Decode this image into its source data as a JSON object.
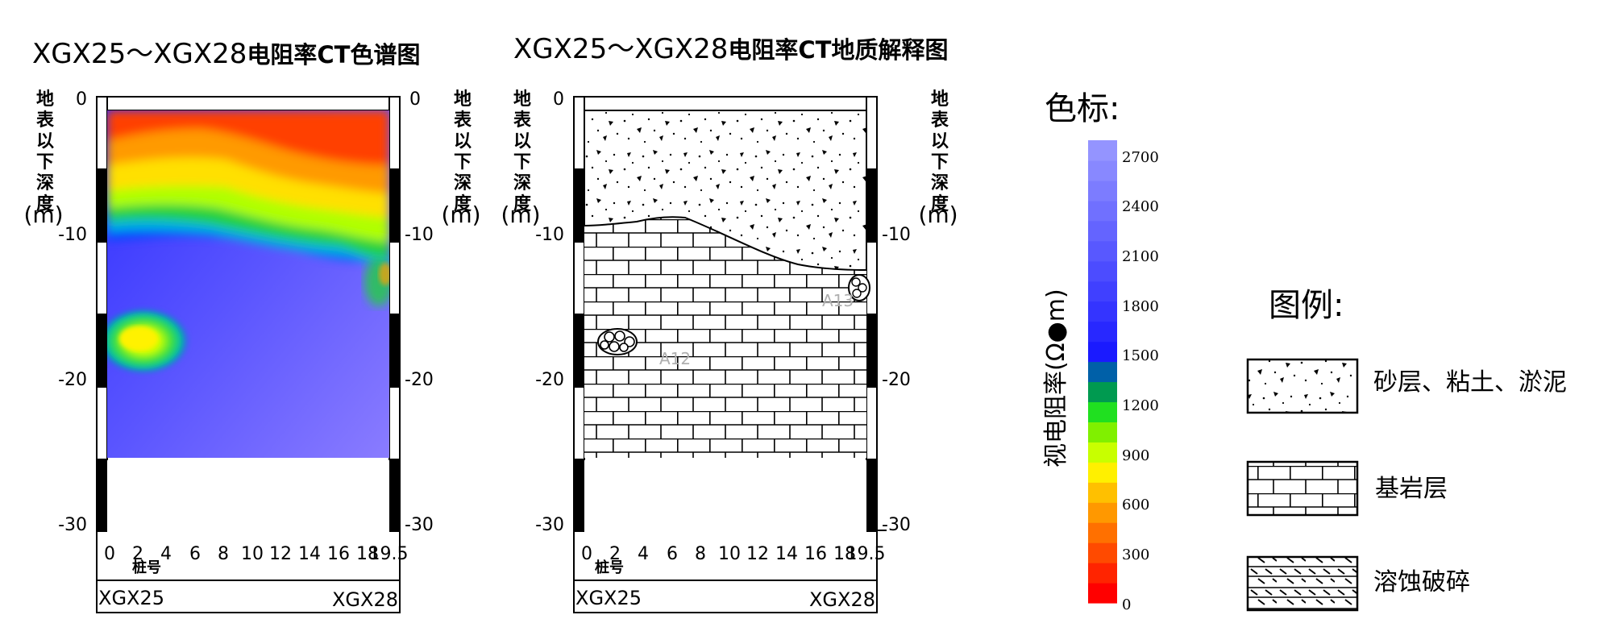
{
  "left_panel": {
    "title_prefix": "XGX25～XGX28",
    "title_suffix": "电阻率CT色谱图"
  },
  "right_panel": {
    "title_prefix": "XGX25～XGX28",
    "title_suffix": "电阻率CT地质解释图",
    "anomaly_labels": [
      "A12",
      "A13"
    ]
  },
  "axes": {
    "depth_label_chars": [
      "地",
      "表",
      "以",
      "下",
      "深",
      "度"
    ],
    "depth_unit": "(m)",
    "depth_ticks": [
      "0",
      "-10",
      "-20",
      "-30"
    ],
    "pile_ticks": [
      "0",
      "2",
      "4",
      "6",
      "8",
      "10",
      "12",
      "14",
      "16",
      "18",
      "19.5"
    ],
    "pile_label": "桩号",
    "well_start": "XGX25",
    "well_end": "XGX28"
  },
  "colorbar": {
    "heading": "色标:",
    "axis_label": "视电阻率(Ω●m)",
    "ticks": [
      "2700",
      "2400",
      "2100",
      "1800",
      "1500",
      "1200",
      "900",
      "600",
      "300",
      "0"
    ],
    "colors": [
      "#ff0000",
      "#ff2400",
      "#ff4a00",
      "#ff7000",
      "#ff9800",
      "#ffc000",
      "#fff000",
      "#c8ff00",
      "#80f000",
      "#20e020",
      "#009a50",
      "#0060a8",
      "#1a1aff",
      "#2828ff",
      "#3434ff",
      "#4040ff",
      "#4c4cff",
      "#5858ff",
      "#6464ff",
      "#7070ff",
      "#7c7cff",
      "#8888ff",
      "#9494ff"
    ]
  },
  "legend": {
    "heading": "图例:",
    "items": [
      {
        "icon": "sand-clay-pattern",
        "label": "砂层、粘土、淤泥"
      },
      {
        "icon": "bedrock-brick-pattern",
        "label": "基岩层"
      },
      {
        "icon": "karst-fracture-pattern",
        "label": "溶蚀破碎"
      }
    ]
  }
}
